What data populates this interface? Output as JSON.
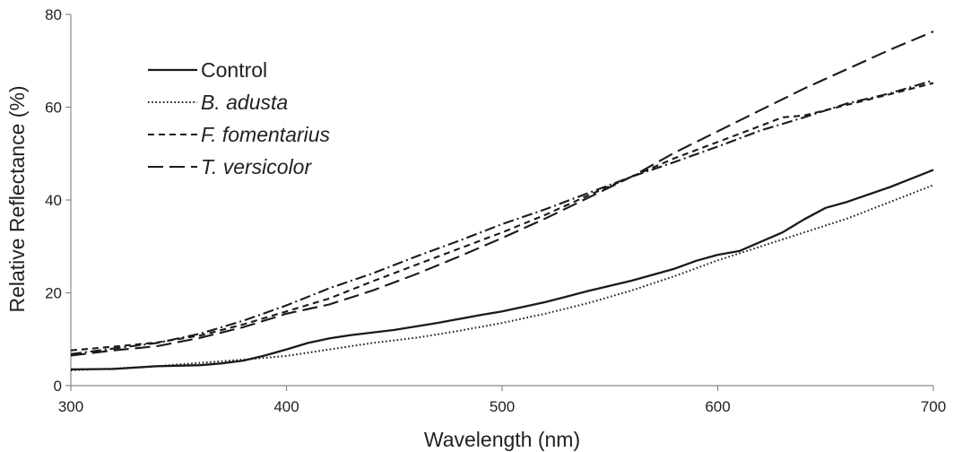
{
  "chart_data": {
    "type": "line",
    "title": "",
    "xlabel": "Wavelength (nm)",
    "ylabel": "Relative Reflectance (%)",
    "xlim": [
      300,
      700
    ],
    "ylim": [
      0,
      80
    ],
    "x_ticks": [
      "300",
      "400",
      "500",
      "600",
      "700"
    ],
    "y_ticks": [
      "0",
      "20",
      "40",
      "60",
      "80"
    ],
    "grid": false,
    "legend_position": "top-left",
    "series": [
      {
        "name": "Control",
        "italic": false,
        "dash": "solid",
        "points": [
          [
            300,
            3.5
          ],
          [
            320,
            3.6
          ],
          [
            340,
            4.2
          ],
          [
            360,
            4.4
          ],
          [
            370,
            4.8
          ],
          [
            380,
            5.4
          ],
          [
            390,
            6.5
          ],
          [
            400,
            7.8
          ],
          [
            410,
            9.2
          ],
          [
            420,
            10.2
          ],
          [
            430,
            10.9
          ],
          [
            450,
            12.0
          ],
          [
            470,
            13.5
          ],
          [
            490,
            15.2
          ],
          [
            500,
            16.0
          ],
          [
            520,
            18.0
          ],
          [
            540,
            20.4
          ],
          [
            560,
            22.6
          ],
          [
            580,
            25.2
          ],
          [
            590,
            26.9
          ],
          [
            600,
            28.2
          ],
          [
            610,
            29.0
          ],
          [
            620,
            31.0
          ],
          [
            630,
            33.0
          ],
          [
            640,
            35.8
          ],
          [
            650,
            38.3
          ],
          [
            660,
            39.6
          ],
          [
            680,
            42.8
          ],
          [
            700,
            46.5
          ]
        ]
      },
      {
        "name": "B. adusta",
        "italic": true,
        "dash": "dotted",
        "points": [
          [
            300,
            3.3
          ],
          [
            320,
            3.7
          ],
          [
            340,
            4.2
          ],
          [
            360,
            4.9
          ],
          [
            380,
            5.6
          ],
          [
            400,
            6.4
          ],
          [
            420,
            7.8
          ],
          [
            440,
            9.2
          ],
          [
            460,
            10.3
          ],
          [
            480,
            11.8
          ],
          [
            500,
            13.5
          ],
          [
            520,
            15.5
          ],
          [
            540,
            17.8
          ],
          [
            560,
            20.5
          ],
          [
            580,
            23.6
          ],
          [
            600,
            27.0
          ],
          [
            620,
            30.0
          ],
          [
            640,
            33.0
          ],
          [
            660,
            36.0
          ],
          [
            680,
            39.6
          ],
          [
            700,
            43.2
          ]
        ]
      },
      {
        "name": "F. fomentarius",
        "italic": true,
        "dash": "dashed",
        "points": [
          [
            300,
            7.6
          ],
          [
            320,
            8.4
          ],
          [
            340,
            9.3
          ],
          [
            360,
            10.8
          ],
          [
            380,
            13.2
          ],
          [
            400,
            16.0
          ],
          [
            420,
            18.8
          ],
          [
            440,
            22.5
          ],
          [
            460,
            26.0
          ],
          [
            480,
            29.5
          ],
          [
            500,
            33.0
          ],
          [
            520,
            36.8
          ],
          [
            540,
            41.0
          ],
          [
            560,
            45.0
          ],
          [
            580,
            49.0
          ],
          [
            600,
            52.5
          ],
          [
            620,
            56.0
          ],
          [
            630,
            57.8
          ],
          [
            640,
            58.2
          ],
          [
            660,
            60.5
          ],
          [
            680,
            62.8
          ],
          [
            700,
            65.2
          ]
        ]
      },
      {
        "name": "T. versicolor",
        "italic": true,
        "dash": "long-dash",
        "points": [
          [
            300,
            6.5
          ],
          [
            320,
            7.6
          ],
          [
            340,
            8.5
          ],
          [
            360,
            10.3
          ],
          [
            380,
            12.6
          ],
          [
            400,
            15.5
          ],
          [
            420,
            17.5
          ],
          [
            440,
            20.5
          ],
          [
            460,
            24.0
          ],
          [
            480,
            27.8
          ],
          [
            500,
            31.8
          ],
          [
            520,
            36.0
          ],
          [
            540,
            40.5
          ],
          [
            560,
            45.0
          ],
          [
            580,
            50.2
          ],
          [
            600,
            54.8
          ],
          [
            620,
            59.4
          ],
          [
            640,
            64.0
          ],
          [
            660,
            68.2
          ],
          [
            680,
            72.4
          ],
          [
            700,
            76.3
          ]
        ]
      },
      {
        "name": "",
        "italic": false,
        "dash": "dash-dot",
        "points": [
          [
            300,
            6.8
          ],
          [
            320,
            8.0
          ],
          [
            340,
            9.2
          ],
          [
            360,
            11.2
          ],
          [
            380,
            14.0
          ],
          [
            400,
            17.3
          ],
          [
            420,
            21.0
          ],
          [
            440,
            24.2
          ],
          [
            460,
            27.8
          ],
          [
            480,
            31.2
          ],
          [
            500,
            34.8
          ],
          [
            520,
            38.0
          ],
          [
            540,
            41.5
          ],
          [
            560,
            45.0
          ],
          [
            580,
            48.2
          ],
          [
            600,
            51.5
          ],
          [
            620,
            55.0
          ],
          [
            640,
            57.8
          ],
          [
            660,
            60.8
          ],
          [
            680,
            63.0
          ],
          [
            700,
            65.8
          ]
        ]
      }
    ]
  }
}
